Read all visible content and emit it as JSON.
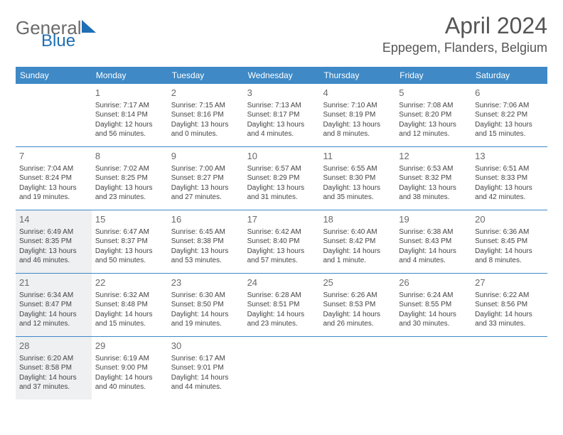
{
  "logo": {
    "word1": "General",
    "word2": "Blue",
    "color_gray": "#6b6b6b",
    "color_blue": "#1f6fb5",
    "triangle_color": "#1f6fb5"
  },
  "title": "April 2024",
  "location": "Eppegem, Flanders, Belgium",
  "colors": {
    "header_bg": "#3e89c6",
    "shade_bg": "#eef0f1",
    "rule": "#3e89c6"
  },
  "weekdays": [
    "Sunday",
    "Monday",
    "Tuesday",
    "Wednesday",
    "Thursday",
    "Friday",
    "Saturday"
  ],
  "weeks": [
    [
      {
        "n": "",
        "sunrise": "",
        "sunset": "",
        "daylight1": "",
        "daylight2": "",
        "shaded": false
      },
      {
        "n": "1",
        "sunrise": "Sunrise: 7:17 AM",
        "sunset": "Sunset: 8:14 PM",
        "daylight1": "Daylight: 12 hours",
        "daylight2": "and 56 minutes.",
        "shaded": false
      },
      {
        "n": "2",
        "sunrise": "Sunrise: 7:15 AM",
        "sunset": "Sunset: 8:16 PM",
        "daylight1": "Daylight: 13 hours",
        "daylight2": "and 0 minutes.",
        "shaded": false
      },
      {
        "n": "3",
        "sunrise": "Sunrise: 7:13 AM",
        "sunset": "Sunset: 8:17 PM",
        "daylight1": "Daylight: 13 hours",
        "daylight2": "and 4 minutes.",
        "shaded": false
      },
      {
        "n": "4",
        "sunrise": "Sunrise: 7:10 AM",
        "sunset": "Sunset: 8:19 PM",
        "daylight1": "Daylight: 13 hours",
        "daylight2": "and 8 minutes.",
        "shaded": false
      },
      {
        "n": "5",
        "sunrise": "Sunrise: 7:08 AM",
        "sunset": "Sunset: 8:20 PM",
        "daylight1": "Daylight: 13 hours",
        "daylight2": "and 12 minutes.",
        "shaded": false
      },
      {
        "n": "6",
        "sunrise": "Sunrise: 7:06 AM",
        "sunset": "Sunset: 8:22 PM",
        "daylight1": "Daylight: 13 hours",
        "daylight2": "and 15 minutes.",
        "shaded": false
      }
    ],
    [
      {
        "n": "7",
        "sunrise": "Sunrise: 7:04 AM",
        "sunset": "Sunset: 8:24 PM",
        "daylight1": "Daylight: 13 hours",
        "daylight2": "and 19 minutes.",
        "shaded": false
      },
      {
        "n": "8",
        "sunrise": "Sunrise: 7:02 AM",
        "sunset": "Sunset: 8:25 PM",
        "daylight1": "Daylight: 13 hours",
        "daylight2": "and 23 minutes.",
        "shaded": false
      },
      {
        "n": "9",
        "sunrise": "Sunrise: 7:00 AM",
        "sunset": "Sunset: 8:27 PM",
        "daylight1": "Daylight: 13 hours",
        "daylight2": "and 27 minutes.",
        "shaded": false
      },
      {
        "n": "10",
        "sunrise": "Sunrise: 6:57 AM",
        "sunset": "Sunset: 8:29 PM",
        "daylight1": "Daylight: 13 hours",
        "daylight2": "and 31 minutes.",
        "shaded": false
      },
      {
        "n": "11",
        "sunrise": "Sunrise: 6:55 AM",
        "sunset": "Sunset: 8:30 PM",
        "daylight1": "Daylight: 13 hours",
        "daylight2": "and 35 minutes.",
        "shaded": false
      },
      {
        "n": "12",
        "sunrise": "Sunrise: 6:53 AM",
        "sunset": "Sunset: 8:32 PM",
        "daylight1": "Daylight: 13 hours",
        "daylight2": "and 38 minutes.",
        "shaded": false
      },
      {
        "n": "13",
        "sunrise": "Sunrise: 6:51 AM",
        "sunset": "Sunset: 8:33 PM",
        "daylight1": "Daylight: 13 hours",
        "daylight2": "and 42 minutes.",
        "shaded": false
      }
    ],
    [
      {
        "n": "14",
        "sunrise": "Sunrise: 6:49 AM",
        "sunset": "Sunset: 8:35 PM",
        "daylight1": "Daylight: 13 hours",
        "daylight2": "and 46 minutes.",
        "shaded": true
      },
      {
        "n": "15",
        "sunrise": "Sunrise: 6:47 AM",
        "sunset": "Sunset: 8:37 PM",
        "daylight1": "Daylight: 13 hours",
        "daylight2": "and 50 minutes.",
        "shaded": false
      },
      {
        "n": "16",
        "sunrise": "Sunrise: 6:45 AM",
        "sunset": "Sunset: 8:38 PM",
        "daylight1": "Daylight: 13 hours",
        "daylight2": "and 53 minutes.",
        "shaded": false
      },
      {
        "n": "17",
        "sunrise": "Sunrise: 6:42 AM",
        "sunset": "Sunset: 8:40 PM",
        "daylight1": "Daylight: 13 hours",
        "daylight2": "and 57 minutes.",
        "shaded": false
      },
      {
        "n": "18",
        "sunrise": "Sunrise: 6:40 AM",
        "sunset": "Sunset: 8:42 PM",
        "daylight1": "Daylight: 14 hours",
        "daylight2": "and 1 minute.",
        "shaded": false
      },
      {
        "n": "19",
        "sunrise": "Sunrise: 6:38 AM",
        "sunset": "Sunset: 8:43 PM",
        "daylight1": "Daylight: 14 hours",
        "daylight2": "and 4 minutes.",
        "shaded": false
      },
      {
        "n": "20",
        "sunrise": "Sunrise: 6:36 AM",
        "sunset": "Sunset: 8:45 PM",
        "daylight1": "Daylight: 14 hours",
        "daylight2": "and 8 minutes.",
        "shaded": false
      }
    ],
    [
      {
        "n": "21",
        "sunrise": "Sunrise: 6:34 AM",
        "sunset": "Sunset: 8:47 PM",
        "daylight1": "Daylight: 14 hours",
        "daylight2": "and 12 minutes.",
        "shaded": true
      },
      {
        "n": "22",
        "sunrise": "Sunrise: 6:32 AM",
        "sunset": "Sunset: 8:48 PM",
        "daylight1": "Daylight: 14 hours",
        "daylight2": "and 15 minutes.",
        "shaded": false
      },
      {
        "n": "23",
        "sunrise": "Sunrise: 6:30 AM",
        "sunset": "Sunset: 8:50 PM",
        "daylight1": "Daylight: 14 hours",
        "daylight2": "and 19 minutes.",
        "shaded": false
      },
      {
        "n": "24",
        "sunrise": "Sunrise: 6:28 AM",
        "sunset": "Sunset: 8:51 PM",
        "daylight1": "Daylight: 14 hours",
        "daylight2": "and 23 minutes.",
        "shaded": false
      },
      {
        "n": "25",
        "sunrise": "Sunrise: 6:26 AM",
        "sunset": "Sunset: 8:53 PM",
        "daylight1": "Daylight: 14 hours",
        "daylight2": "and 26 minutes.",
        "shaded": false
      },
      {
        "n": "26",
        "sunrise": "Sunrise: 6:24 AM",
        "sunset": "Sunset: 8:55 PM",
        "daylight1": "Daylight: 14 hours",
        "daylight2": "and 30 minutes.",
        "shaded": false
      },
      {
        "n": "27",
        "sunrise": "Sunrise: 6:22 AM",
        "sunset": "Sunset: 8:56 PM",
        "daylight1": "Daylight: 14 hours",
        "daylight2": "and 33 minutes.",
        "shaded": false
      }
    ],
    [
      {
        "n": "28",
        "sunrise": "Sunrise: 6:20 AM",
        "sunset": "Sunset: 8:58 PM",
        "daylight1": "Daylight: 14 hours",
        "daylight2": "and 37 minutes.",
        "shaded": true
      },
      {
        "n": "29",
        "sunrise": "Sunrise: 6:19 AM",
        "sunset": "Sunset: 9:00 PM",
        "daylight1": "Daylight: 14 hours",
        "daylight2": "and 40 minutes.",
        "shaded": false
      },
      {
        "n": "30",
        "sunrise": "Sunrise: 6:17 AM",
        "sunset": "Sunset: 9:01 PM",
        "daylight1": "Daylight: 14 hours",
        "daylight2": "and 44 minutes.",
        "shaded": false
      },
      {
        "n": "",
        "sunrise": "",
        "sunset": "",
        "daylight1": "",
        "daylight2": "",
        "shaded": false
      },
      {
        "n": "",
        "sunrise": "",
        "sunset": "",
        "daylight1": "",
        "daylight2": "",
        "shaded": false
      },
      {
        "n": "",
        "sunrise": "",
        "sunset": "",
        "daylight1": "",
        "daylight2": "",
        "shaded": false
      },
      {
        "n": "",
        "sunrise": "",
        "sunset": "",
        "daylight1": "",
        "daylight2": "",
        "shaded": false
      }
    ]
  ]
}
